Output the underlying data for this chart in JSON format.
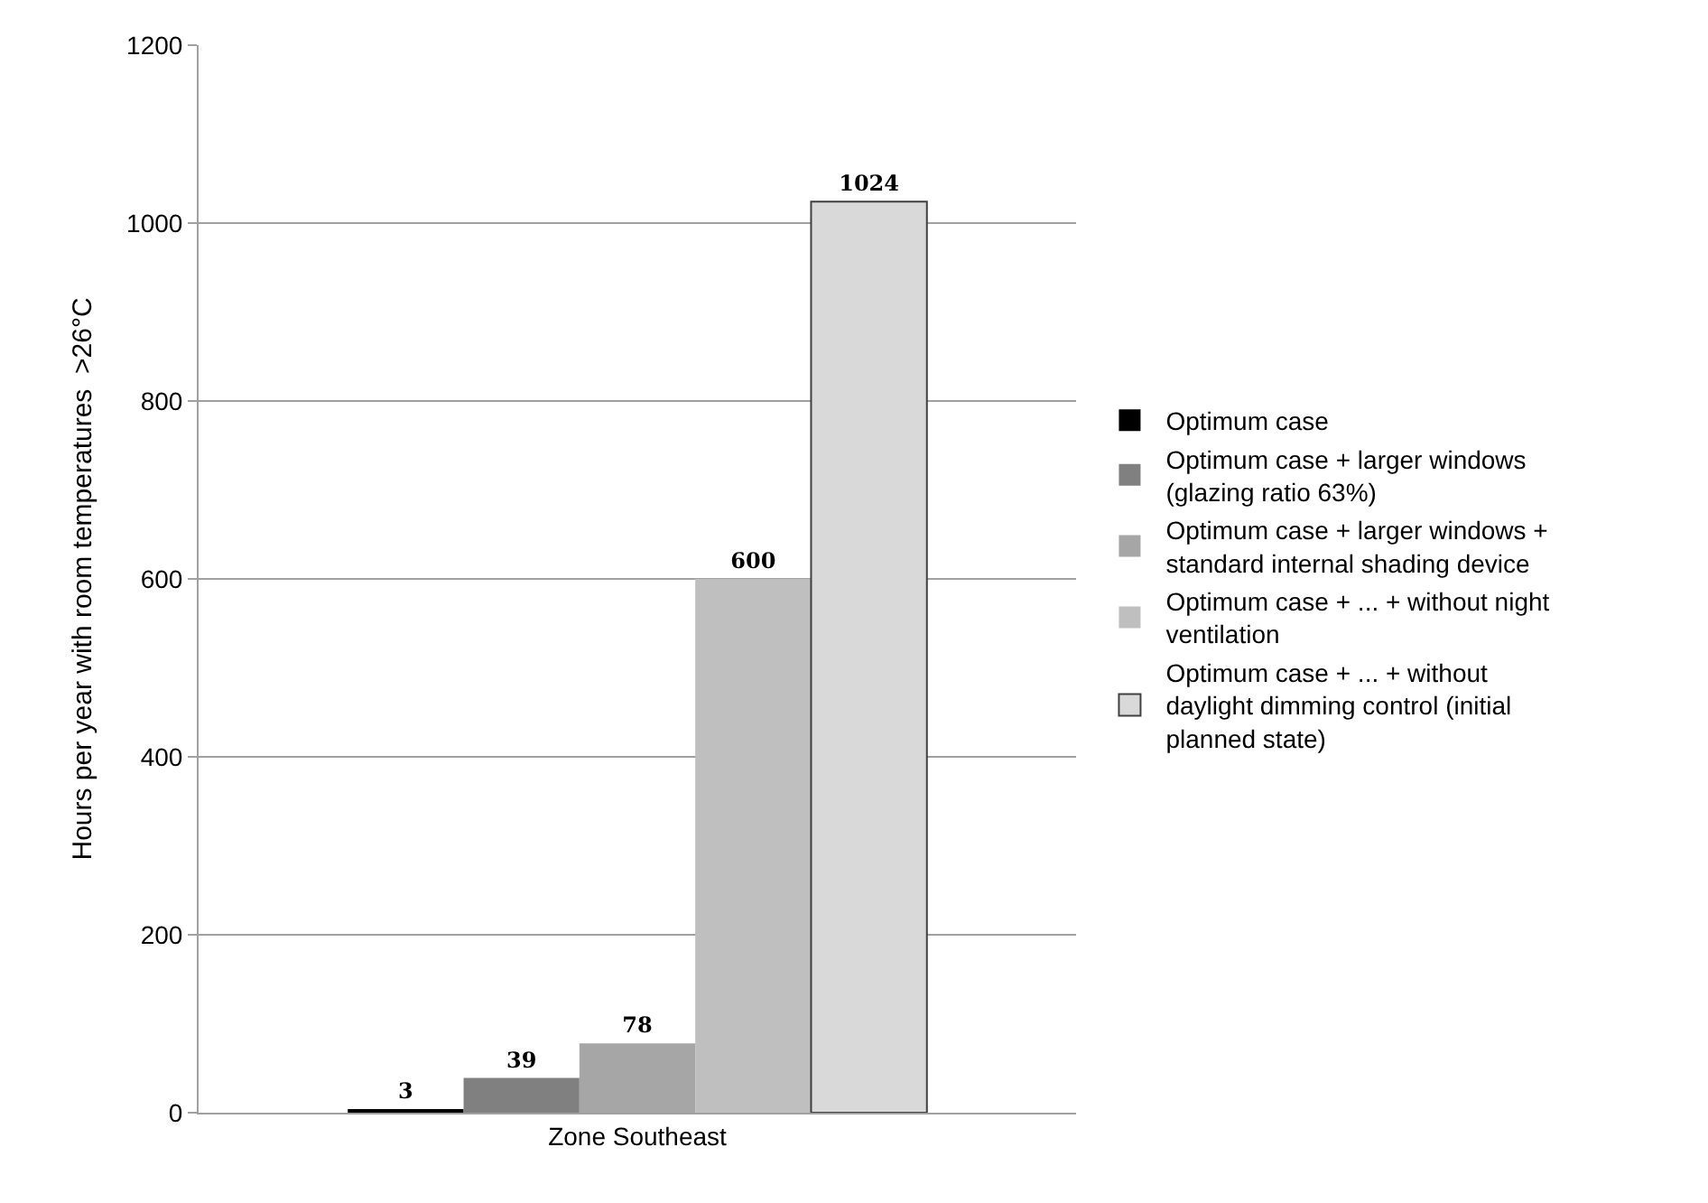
{
  "chart_data": {
    "type": "bar",
    "categories": [
      "Zone Southeast"
    ],
    "ylabel": "Hours per year with room temperatures  >26°C",
    "series": [
      {
        "name": "Optimum case",
        "color": "#000000",
        "values": [
          3
        ]
      },
      {
        "name": "Optimum case + larger windows\n(glazing ratio 63%)",
        "color": "#808080",
        "values": [
          39
        ]
      },
      {
        "name": "Optimum case + larger windows +\nstandard internal shading device",
        "color": "#a6a6a6",
        "values": [
          78
        ]
      },
      {
        "name": "Optimum case + ... + without night\nventilation",
        "color": "#bfbfbf",
        "values": [
          600
        ]
      },
      {
        "name": "Optimum case + ... + without\ndaylight dimming control (initial\nplanned state)",
        "color": "#d9d9d9",
        "values": [
          1024
        ]
      }
    ],
    "ylim": [
      0,
      1200
    ],
    "yticks": [
      0,
      200,
      400,
      600,
      800,
      1000,
      1200
    ],
    "grid": "y",
    "legend": "right",
    "data_labels": true
  }
}
